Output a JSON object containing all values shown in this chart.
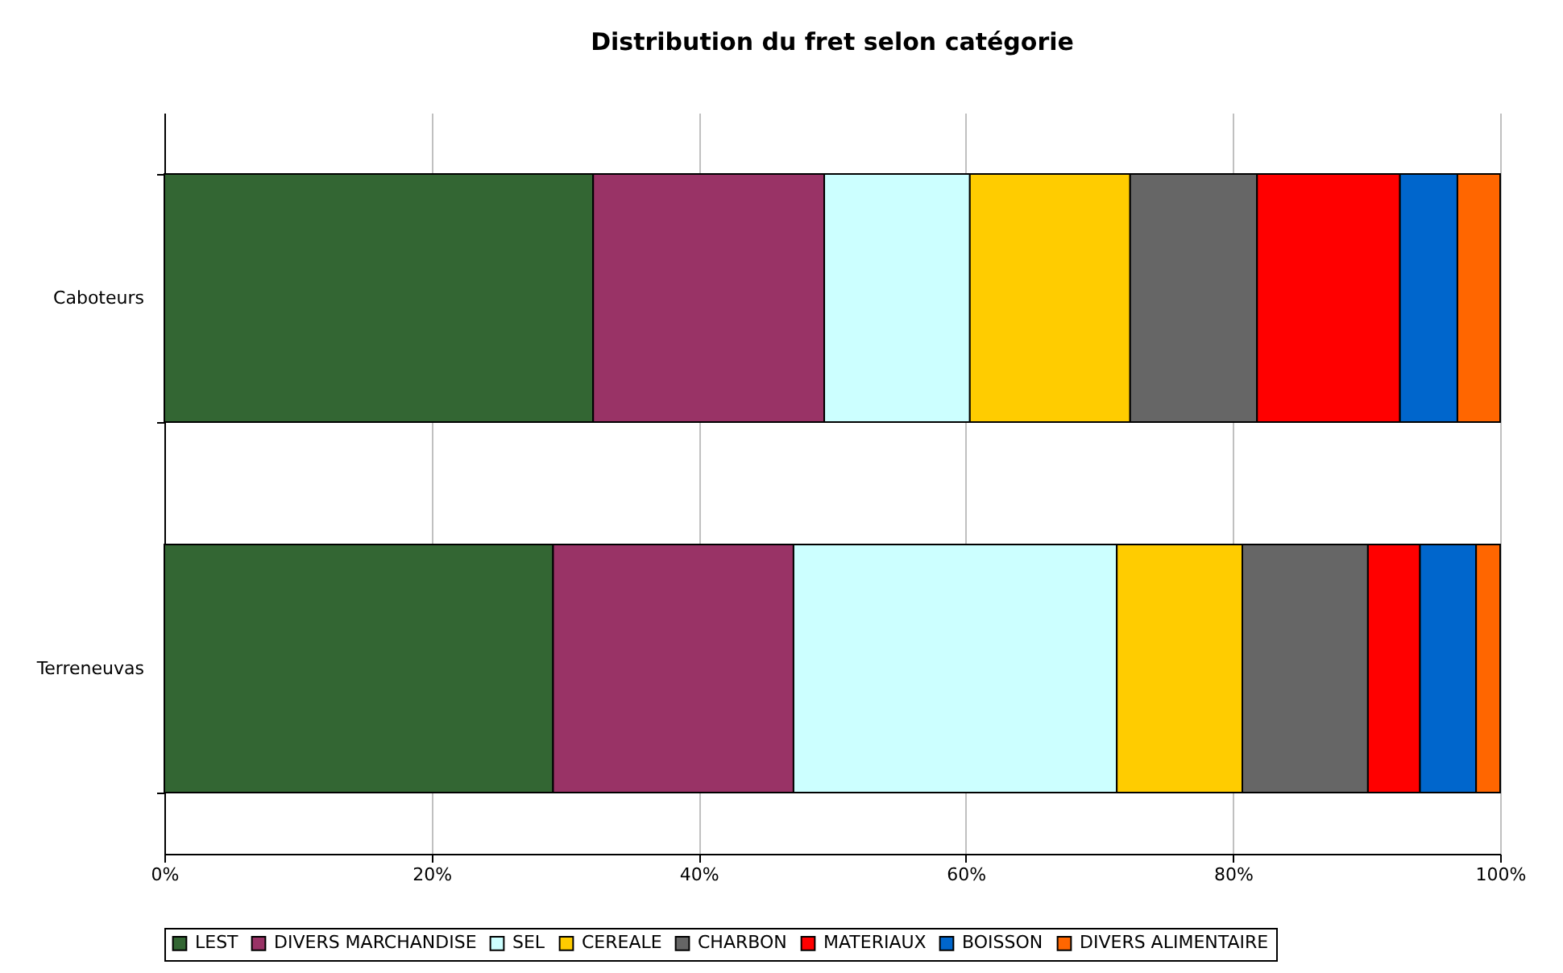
{
  "chart_data": {
    "type": "bar",
    "orientation": "horizontal",
    "stacked": true,
    "title": "Distribution du fret selon catégorie",
    "categories": [
      "Caboteurs",
      "Terreneuvas"
    ],
    "series": [
      {
        "name": "LEST",
        "color": "#336633",
        "values": [
          32.1,
          29.1
        ]
      },
      {
        "name": "DIVERS MARCHANDISE",
        "color": "#993366",
        "values": [
          17.3,
          18.0
        ]
      },
      {
        "name": "SEL",
        "color": "#ccffff",
        "values": [
          10.9,
          24.2
        ]
      },
      {
        "name": "CEREALE",
        "color": "#ffcc00",
        "values": [
          12.0,
          9.4
        ]
      },
      {
        "name": "CHARBON",
        "color": "#666666",
        "values": [
          9.5,
          9.4
        ]
      },
      {
        "name": "MATERIAUX",
        "color": "#ff0000",
        "values": [
          10.7,
          3.9
        ]
      },
      {
        "name": "BOISSON",
        "color": "#0066cc",
        "values": [
          4.3,
          4.2
        ]
      },
      {
        "name": "DIVERS ALIMENTAIRE",
        "color": "#ff6600",
        "values": [
          3.2,
          1.8
        ]
      }
    ],
    "xlim": [
      0,
      100
    ],
    "xticks": [
      {
        "value": 0,
        "label": "0%"
      },
      {
        "value": 20,
        "label": "20%"
      },
      {
        "value": 40,
        "label": "40%"
      },
      {
        "value": 60,
        "label": "60%"
      },
      {
        "value": 80,
        "label": "80%"
      },
      {
        "value": 100,
        "label": "100%"
      }
    ],
    "grid": "x",
    "legend": "bottom"
  }
}
